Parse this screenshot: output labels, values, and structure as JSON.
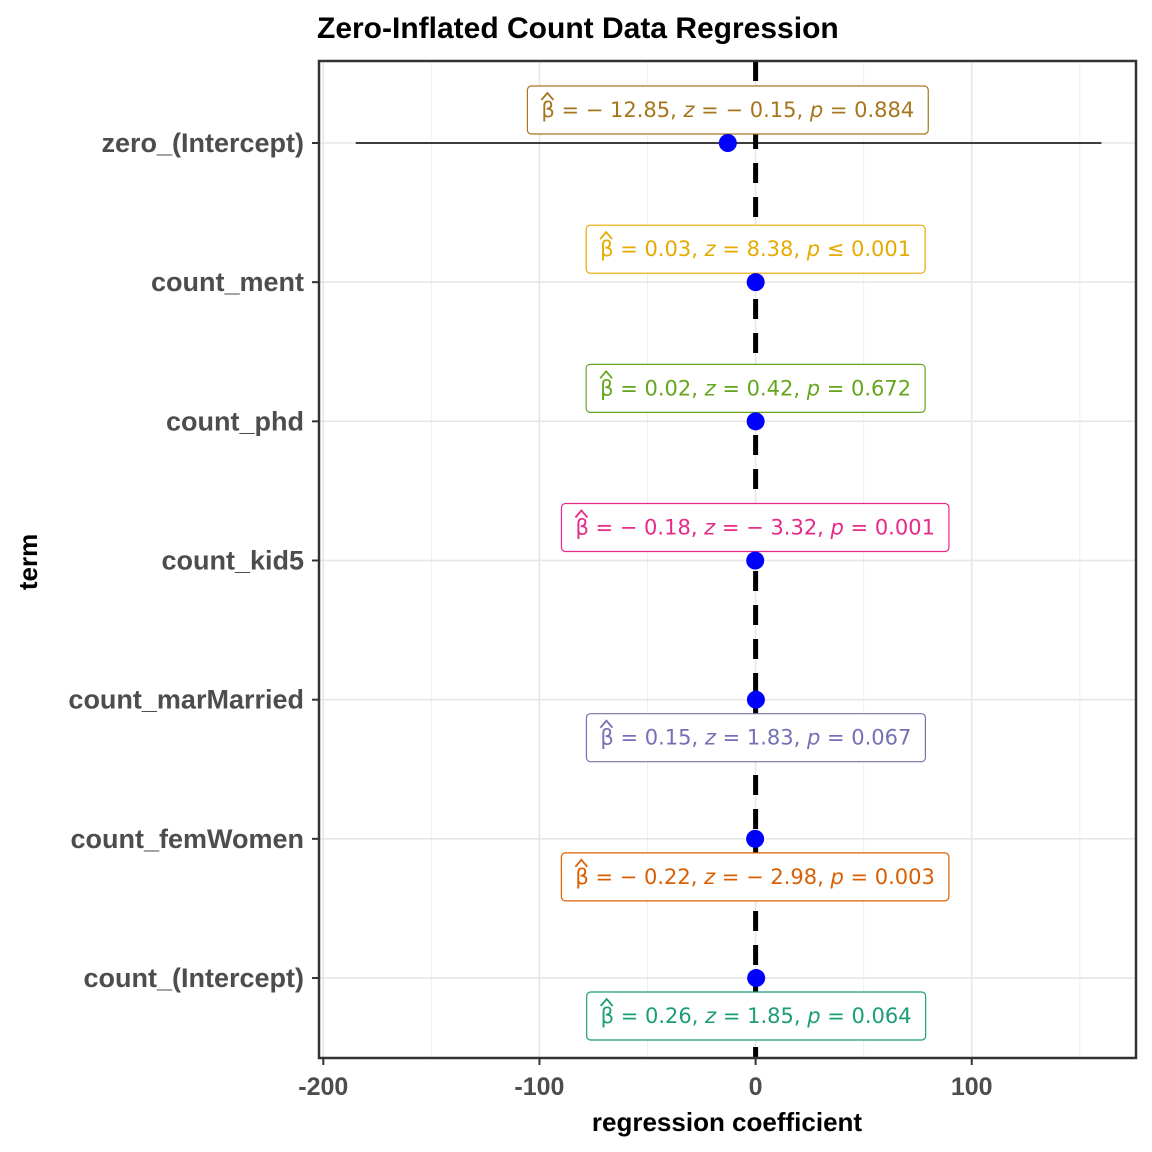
{
  "chart_data": {
    "type": "scatter",
    "title": "Zero-Inflated Count Data Regression",
    "xlabel": "regression coefficient",
    "ylabel": "term",
    "xlim": [
      -202,
      176
    ],
    "x_ticks": [
      -200,
      -100,
      0,
      100
    ],
    "x_tick_labels": [
      "-200",
      "-100",
      "0",
      "100"
    ],
    "reference_line": 0,
    "grid": true,
    "point_color": "#0000ff",
    "terms": [
      {
        "term": "zero_(Intercept)",
        "estimate": -12.85,
        "conf_low": -185,
        "conf_high": 160,
        "beta": "− 12.85",
        "z": "− 0.15",
        "p_op": "=",
        "p": "0.884",
        "color": "#a6761d",
        "label_pos": "above"
      },
      {
        "term": "count_ment",
        "estimate": 0.03,
        "conf_low": 0.02,
        "conf_high": 0.03,
        "beta": "0.03",
        "z": "8.38",
        "p_op": "≤",
        "p": "0.001",
        "color": "#e6ab02",
        "label_pos": "above"
      },
      {
        "term": "count_phd",
        "estimate": 0.02,
        "conf_low": -0.08,
        "conf_high": 0.11,
        "beta": "0.02",
        "z": "0.42",
        "p_op": "=",
        "p": "0.672",
        "color": "#66a61e",
        "label_pos": "above"
      },
      {
        "term": "count_kid5",
        "estimate": -0.18,
        "conf_low": -0.28,
        "conf_high": -0.07,
        "beta": "− 0.18",
        "z": "− 3.32",
        "p_op": "=",
        "p": "0.001",
        "color": "#e7298a",
        "label_pos": "above"
      },
      {
        "term": "count_marMarried",
        "estimate": 0.15,
        "conf_low": -0.01,
        "conf_high": 0.31,
        "beta": "0.15",
        "z": "1.83",
        "p_op": "=",
        "p": "0.067",
        "color": "#7570b3",
        "label_pos": "below"
      },
      {
        "term": "count_femWomen",
        "estimate": -0.22,
        "conf_low": -0.37,
        "conf_high": -0.08,
        "beta": "− 0.22",
        "z": "− 2.98",
        "p_op": "=",
        "p": "0.003",
        "color": "#d95f02",
        "label_pos": "below"
      },
      {
        "term": "count_(Intercept)",
        "estimate": 0.26,
        "conf_low": -0.02,
        "conf_high": 0.53,
        "beta": "0.26",
        "z": "1.85",
        "p_op": "=",
        "p": "0.064",
        "color": "#1b9e77",
        "label_pos": "below"
      }
    ]
  }
}
